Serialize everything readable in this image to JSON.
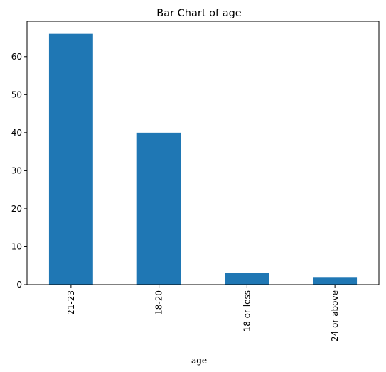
{
  "chart_data": {
    "type": "bar",
    "title": "Bar Chart of age",
    "xlabel": "age",
    "ylabel": "",
    "categories": [
      "21-23",
      "18-20",
      "18 or less",
      "24 or above"
    ],
    "values": [
      66,
      40,
      3,
      2
    ],
    "ylim": [
      0,
      69.3
    ],
    "yticks": [
      0,
      10,
      20,
      30,
      40,
      50,
      60
    ],
    "bar_color": "#1f77b4",
    "grid": false,
    "legend": "none",
    "xtick_rotation": "vertical"
  }
}
